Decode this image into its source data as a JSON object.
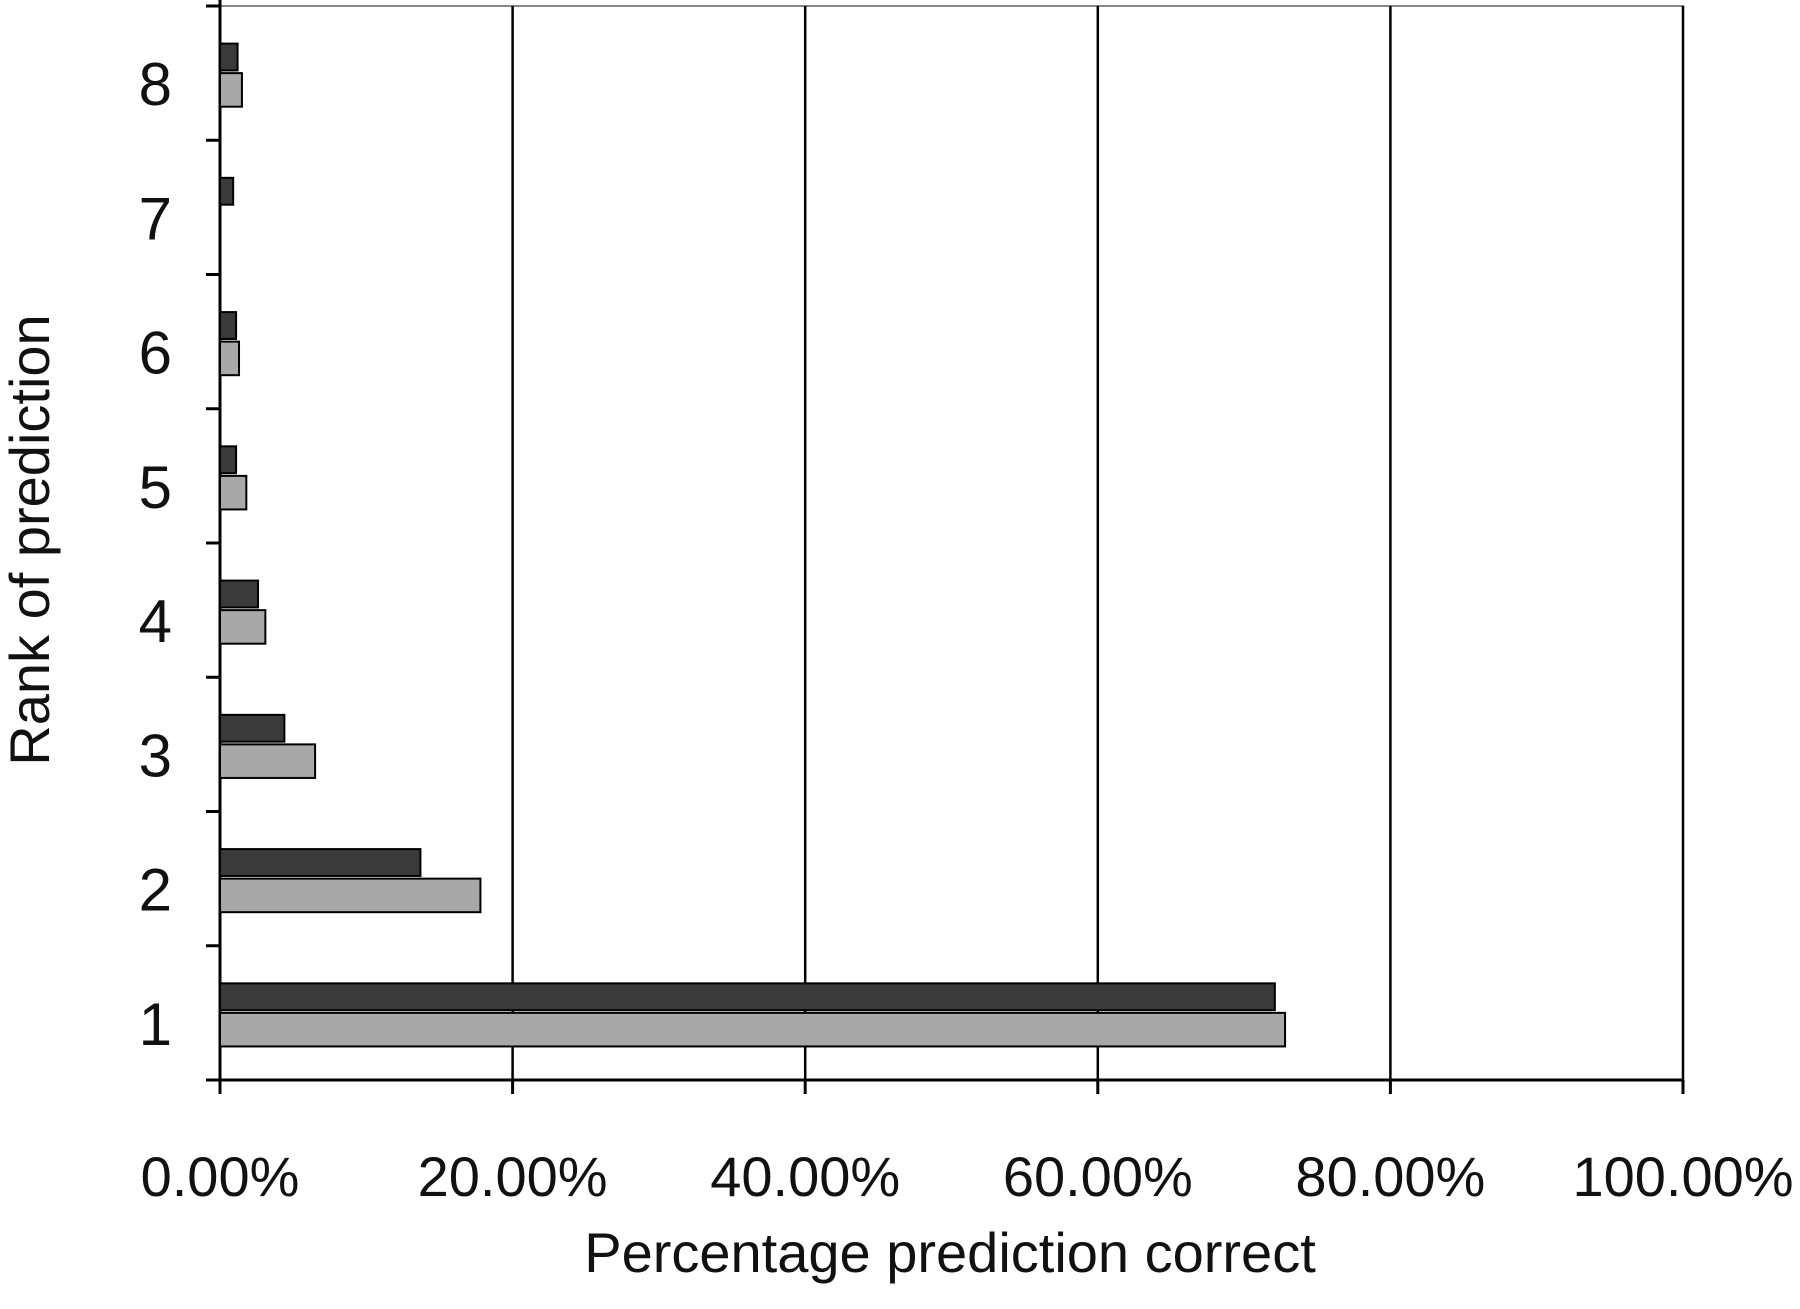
{
  "chart_data": {
    "type": "bar",
    "orientation": "horizontal",
    "x_label": "Percentage prediction correct",
    "y_label": "Rank of prediction",
    "categories": [
      "1",
      "2",
      "3",
      "4",
      "5",
      "6",
      "7",
      "8"
    ],
    "series": [
      {
        "color": "#3a3a3a",
        "values": [
          72.1,
          13.7,
          4.4,
          2.6,
          1.1,
          1.1,
          0.9,
          1.2
        ]
      },
      {
        "color": "#a8a8a8",
        "values": [
          72.8,
          17.8,
          6.5,
          3.1,
          1.8,
          1.3,
          0,
          1.5
        ]
      }
    ],
    "xlim": [
      0,
      100
    ],
    "xticks": [
      {
        "value": 0,
        "label": "0.00%"
      },
      {
        "value": 20,
        "label": "20.00%"
      },
      {
        "value": 40,
        "label": "40.00%"
      },
      {
        "value": 60,
        "label": "60.00%"
      },
      {
        "value": 80,
        "label": "80.00%"
      },
      {
        "value": 100,
        "label": "100.00%"
      }
    ],
    "grid": true
  }
}
